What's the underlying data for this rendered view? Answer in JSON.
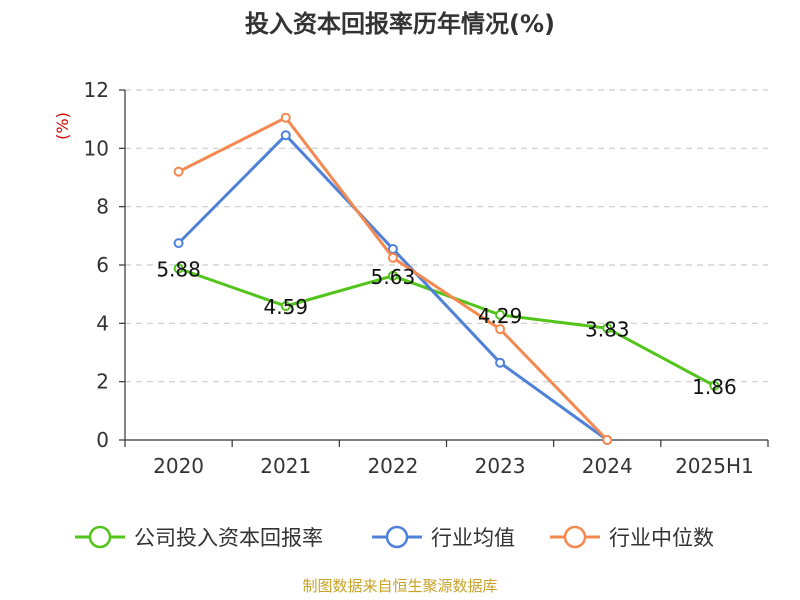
{
  "chart_data": {
    "type": "line",
    "title": "投入资本回报率历年情况(%)",
    "ylabel": "(%)",
    "xlabel": "",
    "categories": [
      "2020",
      "2021",
      "2022",
      "2023",
      "2024",
      "2025H1"
    ],
    "ylim": [
      0,
      12
    ],
    "yticks": [
      0,
      2,
      4,
      6,
      8,
      10,
      12
    ],
    "grid": "horizontal-dashed",
    "legend_position": "bottom",
    "series": [
      {
        "name": "公司投入资本回报率",
        "color": "#52c41a",
        "values": [
          5.88,
          4.59,
          5.63,
          4.29,
          3.83,
          1.86
        ],
        "show_labels": true,
        "labels": [
          "5.88",
          "4.59",
          "5.63",
          "4.29",
          "3.83",
          "1.86"
        ]
      },
      {
        "name": "行业均值",
        "color": "#4f81d9",
        "values": [
          6.75,
          10.45,
          6.55,
          2.65,
          0.0,
          null
        ],
        "show_labels": false
      },
      {
        "name": "行业中位数",
        "color": "#f4894f",
        "values": [
          9.2,
          11.05,
          6.25,
          3.8,
          0.0,
          null
        ],
        "show_labels": false
      }
    ],
    "source_note": "制图数据来自恒生聚源数据库"
  }
}
